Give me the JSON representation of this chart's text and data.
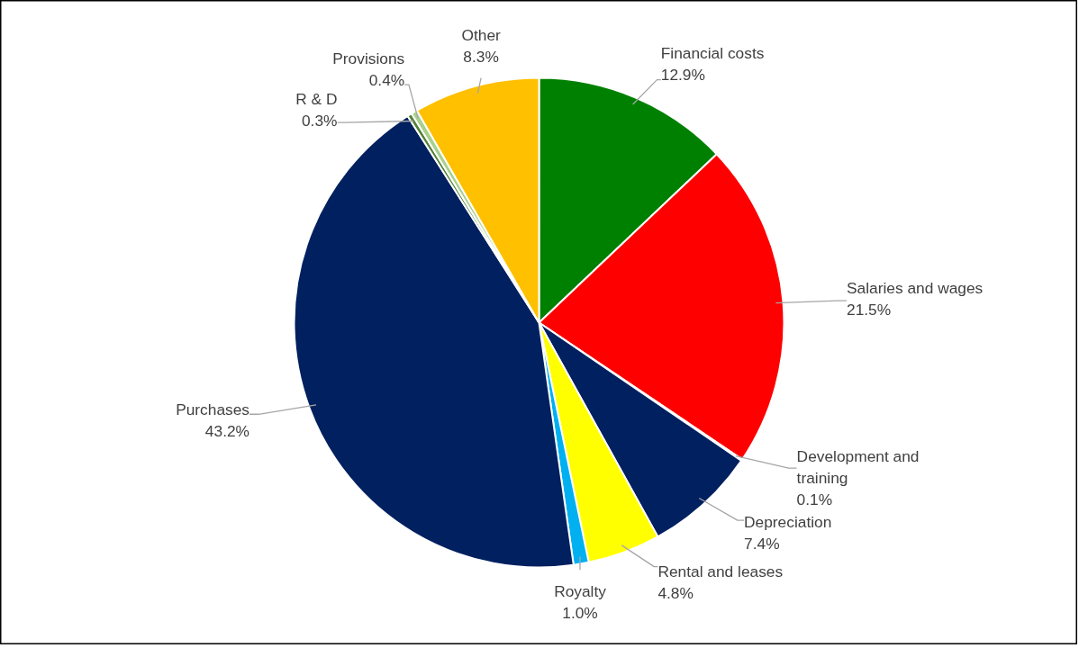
{
  "chart_data": {
    "type": "pie",
    "categories": [
      "Financial costs",
      "Salaries and wages",
      "Development and training",
      "Depreciation",
      "Rental and leases",
      "Royalty",
      "Purchases",
      "R & D",
      "Provisions",
      "Other"
    ],
    "values": [
      12.9,
      21.5,
      0.1,
      7.4,
      4.8,
      1.0,
      43.2,
      0.3,
      0.4,
      8.3
    ],
    "value_labels": [
      "12.9%",
      "21.5%",
      "0.1%",
      "7.4%",
      "4.8%",
      "1.0%",
      "43.2%",
      "0.3%",
      "0.4%",
      "8.3%"
    ],
    "colors": [
      "#008000",
      "#ff0000",
      "#bfbfbf",
      "#002060",
      "#ffff00",
      "#00b0f0",
      "#002060",
      "#548235",
      "#a9d08e",
      "#ffc000"
    ]
  }
}
